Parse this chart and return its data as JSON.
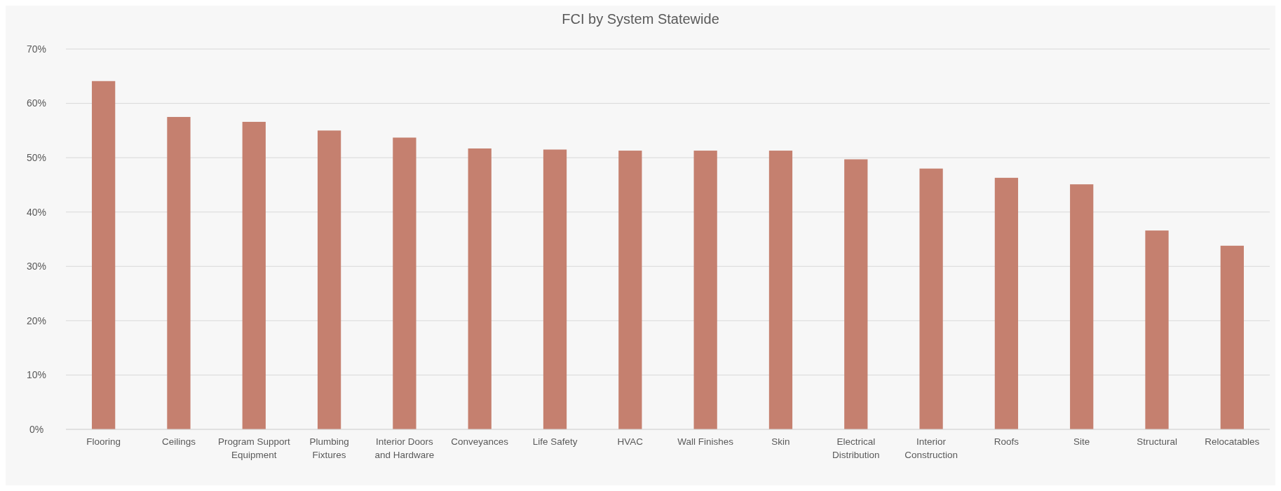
{
  "chart_data": {
    "type": "bar",
    "title": "FCI by System Statewide",
    "categories": [
      "Flooring",
      "Ceilings",
      "Program Support Equipment",
      "Plumbing Fixtures",
      "Interior Doors and Hardware",
      "Conveyances",
      "Life Safety",
      "HVAC",
      "Wall Finishes",
      "Skin",
      "Electrical Distribution",
      "Interior Construction",
      "Roofs",
      "Site",
      "Structural",
      "Relocatables"
    ],
    "values": [
      64.1,
      57.5,
      56.6,
      55.0,
      53.7,
      51.7,
      51.5,
      51.3,
      51.3,
      51.3,
      49.7,
      48.0,
      46.3,
      45.1,
      36.6,
      33.8
    ],
    "color": "#c5806f",
    "ylim": [
      0,
      70
    ],
    "yticks": [
      {
        "value": 0,
        "label": "0%"
      },
      {
        "value": 10,
        "label": "10%"
      },
      {
        "value": 20,
        "label": "20%"
      },
      {
        "value": 30,
        "label": "30%"
      },
      {
        "value": 40,
        "label": "40%"
      },
      {
        "value": 50,
        "label": "50%"
      },
      {
        "value": 60,
        "label": "60%"
      },
      {
        "value": 70,
        "label": "70%"
      }
    ],
    "grid": "y"
  }
}
